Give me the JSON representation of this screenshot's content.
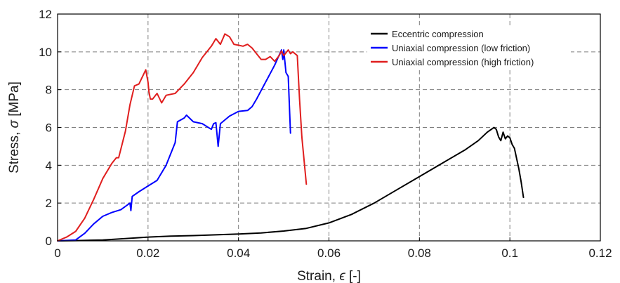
{
  "chart_data": {
    "type": "line",
    "title": "",
    "xlabel_text": "Strain, ",
    "xlabel_symbol": "ϵ",
    "xlabel_unit": " [-]",
    "ylabel_text": "Stress, ",
    "ylabel_symbol": "σ",
    "ylabel_unit": " [MPa]",
    "xlim": [
      0,
      0.12
    ],
    "ylim": [
      0,
      12
    ],
    "x_ticks": [
      0,
      0.02,
      0.04,
      0.06,
      0.08,
      0.1,
      0.12
    ],
    "x_tick_labels": [
      "0",
      "0.02",
      "0.04",
      "0.06",
      "0.08",
      "0.1",
      "0.12"
    ],
    "y_ticks": [
      0,
      2,
      4,
      6,
      8,
      10,
      12
    ],
    "y_tick_labels": [
      "0",
      "2",
      "4",
      "6",
      "8",
      "10",
      "12"
    ],
    "grid": true,
    "legend_position": "top-right",
    "series": [
      {
        "name": "Eccentric compression",
        "color": "#000000",
        "points": [
          [
            0,
            0
          ],
          [
            0.005,
            0.02
          ],
          [
            0.01,
            0.05
          ],
          [
            0.015,
            0.12
          ],
          [
            0.02,
            0.2
          ],
          [
            0.025,
            0.25
          ],
          [
            0.03,
            0.28
          ],
          [
            0.035,
            0.32
          ],
          [
            0.04,
            0.36
          ],
          [
            0.045,
            0.42
          ],
          [
            0.05,
            0.52
          ],
          [
            0.055,
            0.66
          ],
          [
            0.06,
            0.95
          ],
          [
            0.065,
            1.4
          ],
          [
            0.07,
            2.0
          ],
          [
            0.075,
            2.7
          ],
          [
            0.08,
            3.4
          ],
          [
            0.085,
            4.1
          ],
          [
            0.09,
            4.8
          ],
          [
            0.093,
            5.3
          ],
          [
            0.095,
            5.75
          ],
          [
            0.0965,
            6.0
          ],
          [
            0.097,
            5.9
          ],
          [
            0.0975,
            5.5
          ],
          [
            0.098,
            5.3
          ],
          [
            0.0985,
            5.75
          ],
          [
            0.099,
            5.4
          ],
          [
            0.0995,
            5.55
          ],
          [
            0.1,
            5.45
          ],
          [
            0.1005,
            5.1
          ],
          [
            0.101,
            4.9
          ],
          [
            0.102,
            3.8
          ],
          [
            0.1025,
            3.1
          ],
          [
            0.103,
            2.3
          ]
        ]
      },
      {
        "name": "Uniaxial compression (low friction)",
        "color": "#0000ff",
        "points": [
          [
            0,
            0
          ],
          [
            0.004,
            0.05
          ],
          [
            0.006,
            0.4
          ],
          [
            0.008,
            0.9
          ],
          [
            0.01,
            1.3
          ],
          [
            0.012,
            1.5
          ],
          [
            0.014,
            1.65
          ],
          [
            0.016,
            2.0
          ],
          [
            0.0162,
            1.6
          ],
          [
            0.0165,
            2.35
          ],
          [
            0.018,
            2.6
          ],
          [
            0.02,
            2.9
          ],
          [
            0.022,
            3.2
          ],
          [
            0.024,
            4.0
          ],
          [
            0.026,
            5.2
          ],
          [
            0.0265,
            6.3
          ],
          [
            0.028,
            6.5
          ],
          [
            0.0285,
            6.65
          ],
          [
            0.03,
            6.3
          ],
          [
            0.032,
            6.2
          ],
          [
            0.034,
            5.9
          ],
          [
            0.0345,
            6.2
          ],
          [
            0.035,
            6.25
          ],
          [
            0.0355,
            5.0
          ],
          [
            0.036,
            6.2
          ],
          [
            0.038,
            6.6
          ],
          [
            0.04,
            6.85
          ],
          [
            0.042,
            6.9
          ],
          [
            0.043,
            7.1
          ],
          [
            0.044,
            7.5
          ],
          [
            0.046,
            8.4
          ],
          [
            0.048,
            9.3
          ],
          [
            0.0495,
            10.1
          ],
          [
            0.0498,
            9.6
          ],
          [
            0.05,
            10.1
          ],
          [
            0.0505,
            8.9
          ],
          [
            0.051,
            8.7
          ],
          [
            0.0515,
            5.7
          ]
        ]
      },
      {
        "name": "Uniaxial compression (high friction)",
        "color": "#e01e1e",
        "points": [
          [
            0,
            0
          ],
          [
            0.002,
            0.2
          ],
          [
            0.004,
            0.5
          ],
          [
            0.006,
            1.2
          ],
          [
            0.008,
            2.2
          ],
          [
            0.01,
            3.3
          ],
          [
            0.012,
            4.1
          ],
          [
            0.013,
            4.4
          ],
          [
            0.0135,
            4.4
          ],
          [
            0.015,
            5.8
          ],
          [
            0.016,
            7.2
          ],
          [
            0.017,
            8.2
          ],
          [
            0.018,
            8.3
          ],
          [
            0.019,
            8.8
          ],
          [
            0.0195,
            9.05
          ],
          [
            0.02,
            8.4
          ],
          [
            0.0202,
            7.9
          ],
          [
            0.0205,
            7.5
          ],
          [
            0.021,
            7.5
          ],
          [
            0.022,
            7.8
          ],
          [
            0.023,
            7.3
          ],
          [
            0.024,
            7.7
          ],
          [
            0.026,
            7.8
          ],
          [
            0.028,
            8.3
          ],
          [
            0.03,
            8.9
          ],
          [
            0.032,
            9.7
          ],
          [
            0.034,
            10.3
          ],
          [
            0.035,
            10.7
          ],
          [
            0.036,
            10.4
          ],
          [
            0.037,
            10.95
          ],
          [
            0.038,
            10.8
          ],
          [
            0.039,
            10.4
          ],
          [
            0.04,
            10.35
          ],
          [
            0.041,
            10.3
          ],
          [
            0.042,
            10.4
          ],
          [
            0.043,
            10.2
          ],
          [
            0.044,
            9.9
          ],
          [
            0.045,
            9.6
          ],
          [
            0.046,
            9.6
          ],
          [
            0.047,
            9.75
          ],
          [
            0.048,
            9.5
          ],
          [
            0.049,
            9.8
          ],
          [
            0.0495,
            10.05
          ],
          [
            0.05,
            9.8
          ],
          [
            0.051,
            10.1
          ],
          [
            0.0515,
            9.9
          ],
          [
            0.052,
            10.0
          ],
          [
            0.053,
            9.8
          ],
          [
            0.0535,
            7.5
          ],
          [
            0.054,
            5.5
          ],
          [
            0.055,
            3.0
          ]
        ]
      }
    ]
  }
}
